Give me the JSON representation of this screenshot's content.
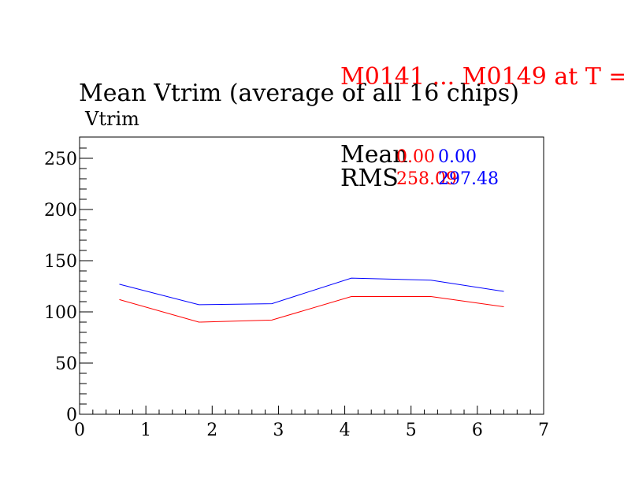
{
  "header_text": "M0141 ... M0149 at T =",
  "header_color": "#ff0000",
  "chart_data": {
    "type": "line",
    "title": "Mean Vtrim (average of all 16 chips)",
    "ylabel": "Vtrim",
    "xlabel": "",
    "xlim": [
      0,
      7
    ],
    "ylim": [
      0,
      260
    ],
    "x_ticks": [
      "0",
      "1",
      "2",
      "3",
      "4",
      "5",
      "6",
      "7"
    ],
    "y_ticks": [
      "0",
      "50",
      "100",
      "150",
      "200",
      "250"
    ],
    "x": [
      0.6,
      1.8,
      2.9,
      4.1,
      5.3,
      6.4
    ],
    "series": [
      {
        "color": "#0000ff",
        "values": [
          127,
          107,
          108,
          133,
          131,
          120
        ]
      },
      {
        "color": "#ff0000",
        "values": [
          112,
          90,
          92,
          115,
          115,
          105
        ]
      }
    ],
    "stats": {
      "mean_label": "Mean",
      "rms_label": "RMS",
      "mean_values": [
        {
          "text": "0.00",
          "color": "#ff0000"
        },
        {
          "text": "0.00",
          "color": "#0000ff"
        }
      ],
      "rms_values": [
        {
          "text": "258.09",
          "color": "#ff0000"
        },
        {
          "text": "297.48",
          "color": "#0000ff"
        }
      ]
    }
  }
}
